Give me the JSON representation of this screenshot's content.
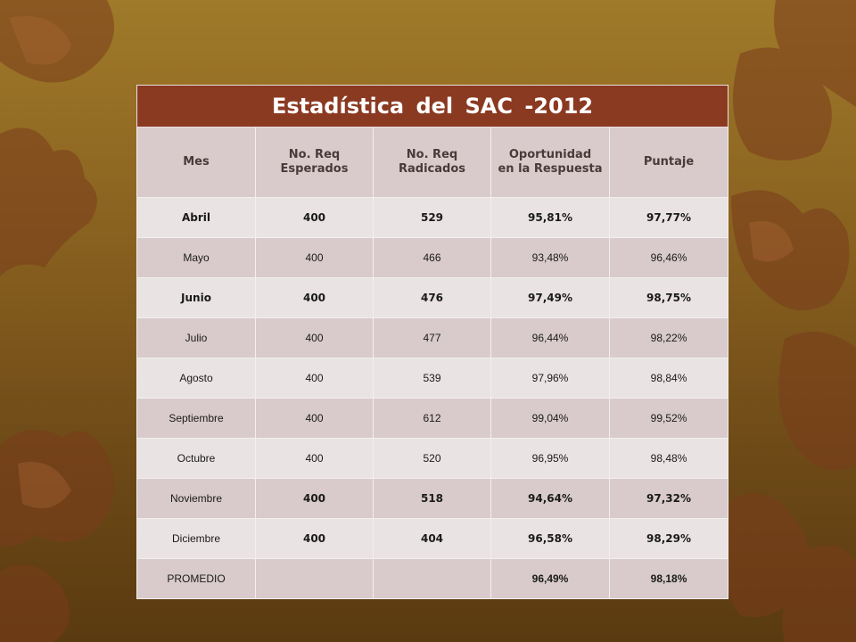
{
  "title": "Estadística  del  SAC  -2012",
  "columns": [
    "Mes",
    "No.  Req\nEsperados",
    "No.  Req\nRadicados",
    "Oportunidad\nen la Respuesta",
    "Puntaje"
  ],
  "rows": [
    [
      "Abril",
      "400",
      "529",
      "95,81%",
      "97,77%"
    ],
    [
      "Mayo",
      "400",
      "466",
      "93,48%",
      "96,46%"
    ],
    [
      "Junio",
      "400",
      "476",
      "97,49%",
      "98,75%"
    ],
    [
      "Julio",
      "400",
      "477",
      "96,44%",
      "98,22%"
    ],
    [
      "Agosto",
      "400",
      "539",
      "97,96%",
      "98,84%"
    ],
    [
      "Septiembre",
      "400",
      "612",
      "99,04%",
      "99,52%"
    ],
    [
      "Octubre",
      "400",
      "520",
      "96,95%",
      "98,48%"
    ],
    [
      "Noviembre",
      "400",
      "518",
      "94,64%",
      "97,32%"
    ],
    [
      "Diciembre",
      "400",
      "404",
      "96,58%",
      "98,29%"
    ],
    [
      "PROMEDIO",
      "",
      "",
      "96,49%",
      "98,18%"
    ]
  ],
  "colors": {
    "title_bg": "#8b3a22",
    "row_dark": "#d9cbcb",
    "row_light": "#eae3e3",
    "background": "#8a6220"
  },
  "background_decoration": "autumn-leaves"
}
